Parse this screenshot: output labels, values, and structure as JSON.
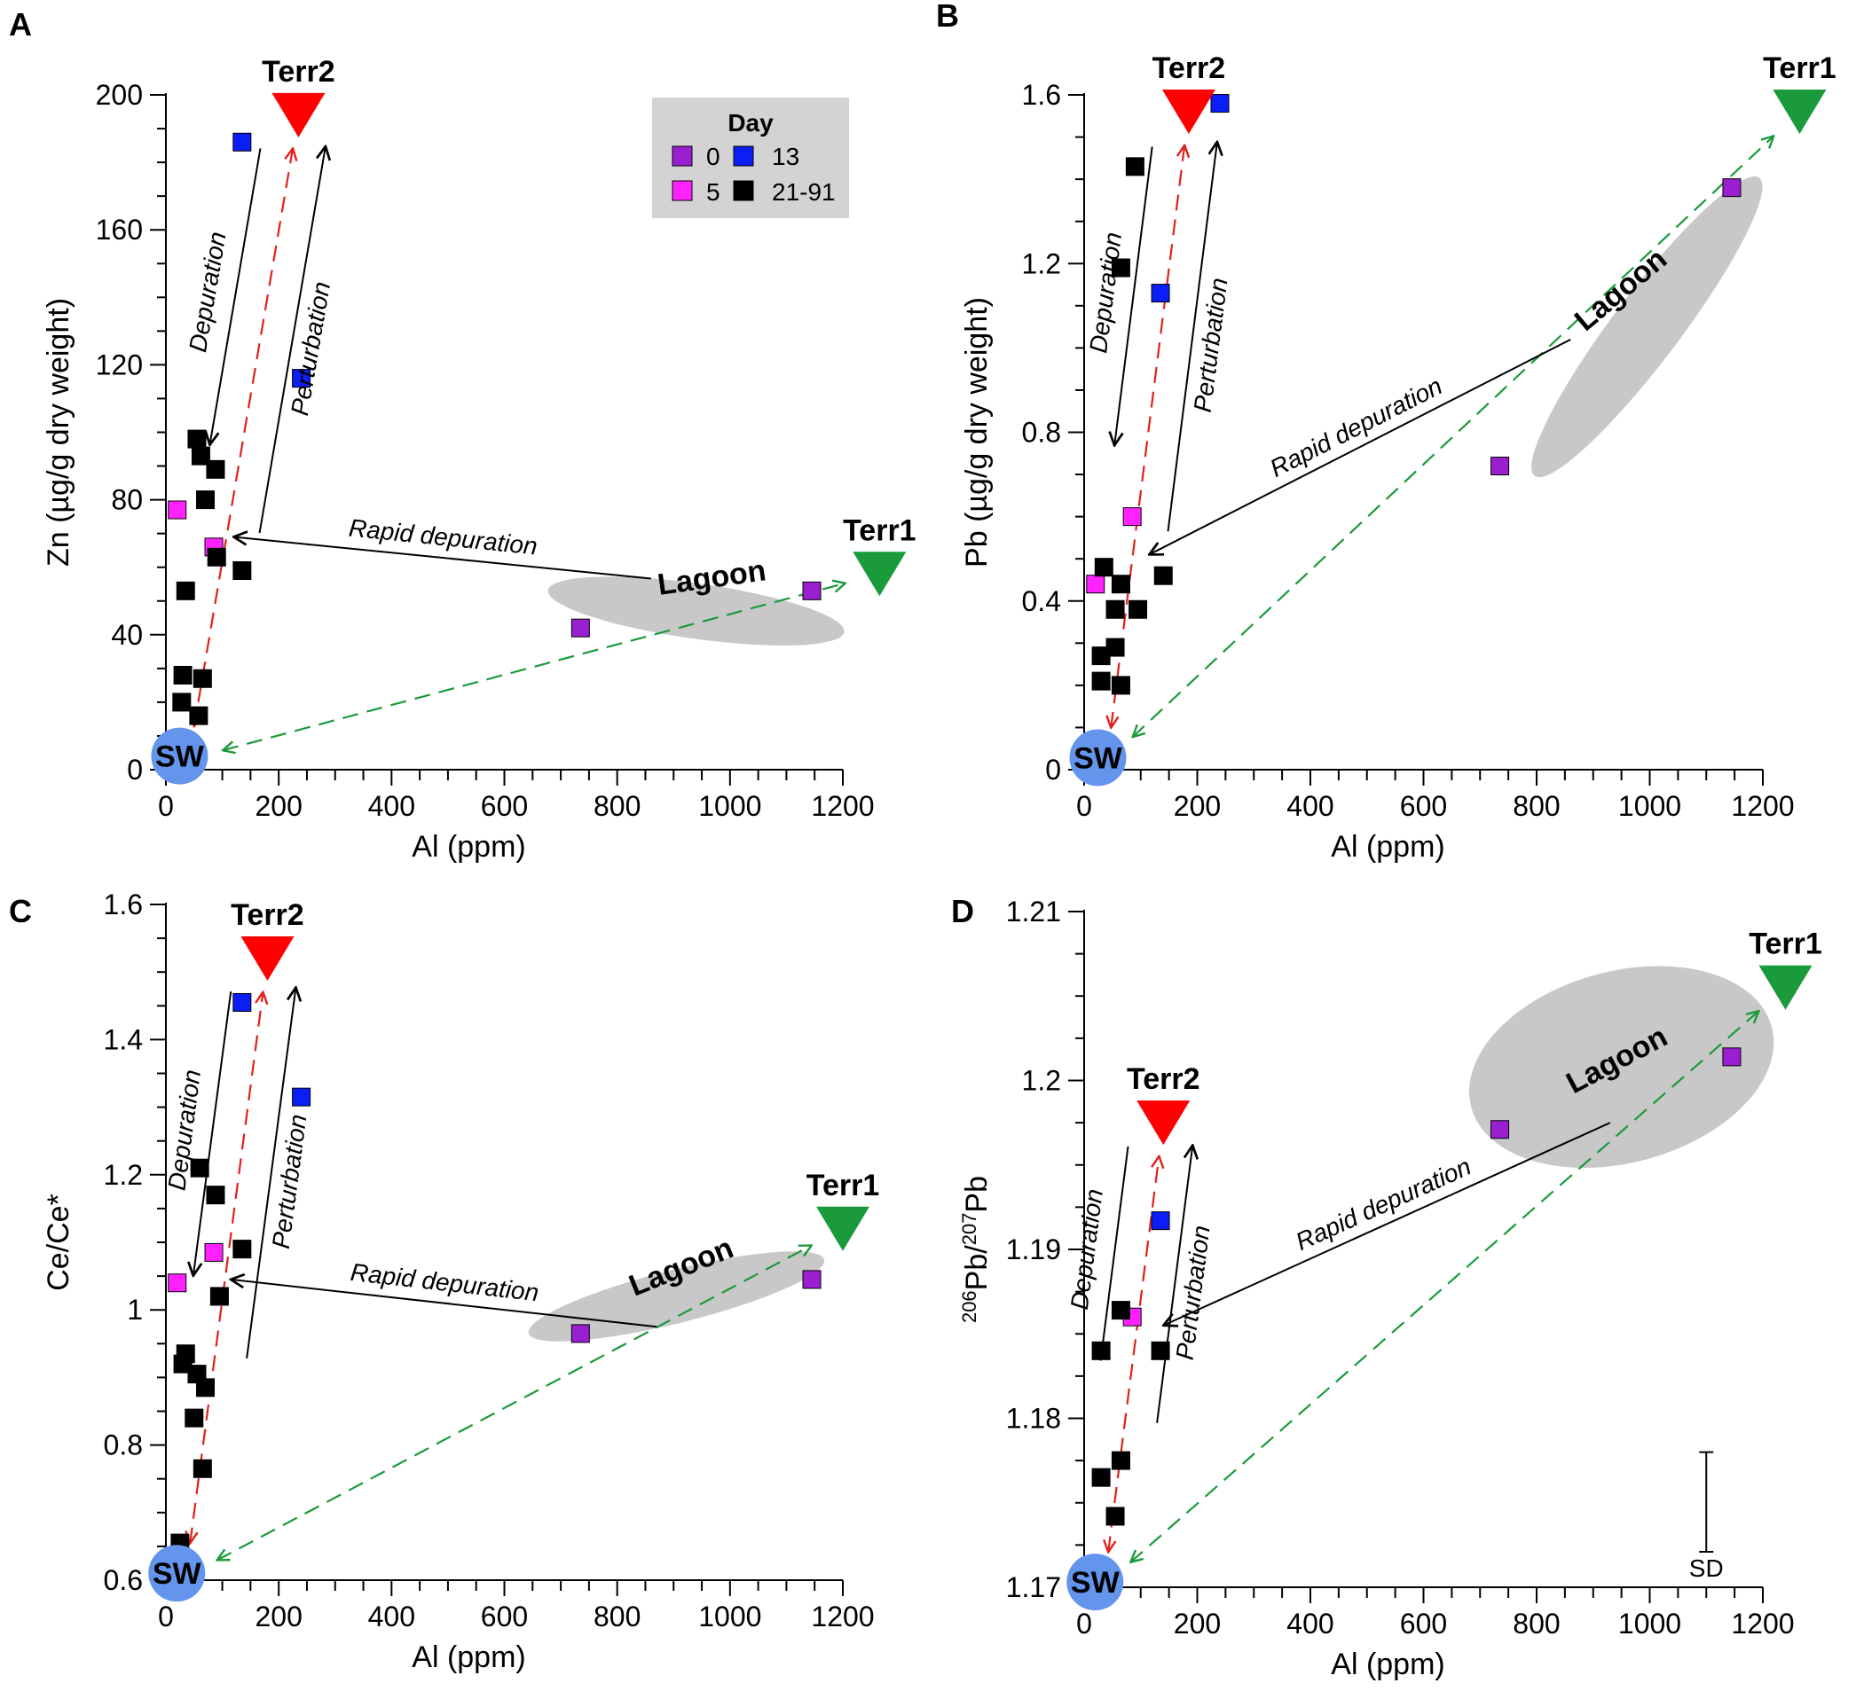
{
  "figure": {
    "legend": {
      "title": "Day",
      "items": [
        {
          "label": "0",
          "color": "#9a1fd0"
        },
        {
          "label": "13",
          "color": "#0a1ef5"
        },
        {
          "label": "5",
          "color": "#ff22ff"
        },
        {
          "label": "21-91",
          "color": "#000000"
        }
      ]
    },
    "colors": {
      "terr2": "#ff0000",
      "terr1": "#1a9a3a",
      "sw": "#6495ed",
      "lagoon": "#c8c8c8",
      "red_dash": "#e0201c",
      "green_dash": "#1a9a3a"
    }
  },
  "chart_data": [
    {
      "type": "scatter",
      "panel": "A",
      "xlabel": "Al (ppm)",
      "ylabel": "Zn (µg/g dry weight)",
      "ylabel_html": "",
      "xlim": [
        0,
        1200
      ],
      "ylim": [
        0,
        200
      ],
      "xticks": [
        "0",
        "200",
        "400",
        "600",
        "800",
        "1000",
        "1200"
      ],
      "yticks": [
        "0",
        "40",
        "80",
        "120",
        "160",
        "200"
      ],
      "endmembers": {
        "terr2": {
          "label": "Terr2",
          "x": 235,
          "y": 194
        },
        "terr1": {
          "label": "Terr1",
          "x": 1265,
          "y": 58
        },
        "sw": {
          "label": "SW",
          "x": 40,
          "y": 3
        }
      },
      "lagoon": {
        "label": "Lagoon",
        "cx": 940,
        "cy": 47,
        "rx": 265,
        "ry": 8,
        "angle": 8,
        "label_x": 970,
        "label_y": 54
      },
      "annotations": {
        "depuration": "Depuration",
        "perturbation": "Perturbation",
        "rapid": "Rapid depuration"
      },
      "series": [
        {
          "name": "0",
          "points": [
            [
              735,
              42
            ],
            [
              1145,
              53
            ]
          ]
        },
        {
          "name": "5",
          "points": [
            [
              20,
              77
            ],
            [
              85,
              66
            ]
          ]
        },
        {
          "name": "13",
          "points": [
            [
              135,
              186
            ],
            [
              240,
              116
            ]
          ]
        },
        {
          "name": "21-91",
          "points": [
            [
              55,
              98
            ],
            [
              62,
              93
            ],
            [
              88,
              89
            ],
            [
              70,
              80
            ],
            [
              90,
              63
            ],
            [
              135,
              59
            ],
            [
              35,
              53
            ],
            [
              30,
              28
            ],
            [
              65,
              27
            ],
            [
              28,
              20
            ],
            [
              58,
              16
            ]
          ]
        }
      ]
    },
    {
      "type": "scatter",
      "panel": "B",
      "xlabel": "Al (ppm)",
      "ylabel": "Pb (µg/g dry weight)",
      "ylabel_html": "",
      "xlim": [
        0,
        1200
      ],
      "ylim": [
        0,
        1.6
      ],
      "xticks": [
        "0",
        "200",
        "400",
        "600",
        "800",
        "1000",
        "1200"
      ],
      "yticks": [
        "0",
        "0.4",
        "0.8",
        "1.2",
        "1.6"
      ],
      "endmembers": {
        "terr2": {
          "label": "Terr2",
          "x": 185,
          "y": 1.56
        },
        "terr1": {
          "label": "Terr1",
          "x": 1265,
          "y": 1.56
        },
        "sw": {
          "label": "SW",
          "x": 40,
          "y": 0.02
        }
      },
      "lagoon": {
        "label": "Lagoon",
        "cx": 995,
        "cy": 1.05,
        "rx": 330,
        "ry": 38,
        "angle": -53,
        "label_x": 960,
        "label_y": 1.12
      },
      "annotations": {
        "depuration": "Depuration",
        "perturbation": "Perturbation",
        "rapid": "Rapid depuration"
      },
      "series": [
        {
          "name": "0",
          "points": [
            [
              735,
              0.72
            ],
            [
              1145,
              1.38
            ]
          ]
        },
        {
          "name": "5",
          "points": [
            [
              20,
              0.44
            ],
            [
              85,
              0.6
            ]
          ]
        },
        {
          "name": "13",
          "points": [
            [
              135,
              1.13
            ],
            [
              240,
              1.58
            ]
          ]
        },
        {
          "name": "21-91",
          "points": [
            [
              90,
              1.43
            ],
            [
              65,
              1.19
            ],
            [
              35,
              0.48
            ],
            [
              65,
              0.44
            ],
            [
              140,
              0.46
            ],
            [
              55,
              0.38
            ],
            [
              95,
              0.38
            ],
            [
              55,
              0.29
            ],
            [
              30,
              0.27
            ],
            [
              30,
              0.21
            ],
            [
              65,
              0.2
            ]
          ]
        }
      ]
    },
    {
      "type": "scatter",
      "panel": "C",
      "xlabel": "Al (ppm)",
      "ylabel": "Ce/Ce*",
      "ylabel_html": "",
      "xlim": [
        0,
        1200
      ],
      "ylim": [
        0.6,
        1.6
      ],
      "xticks": [
        "0",
        "200",
        "400",
        "600",
        "800",
        "1000",
        "1200"
      ],
      "yticks": [
        "0.6",
        "0.8",
        "1",
        "1.2",
        "1.4",
        "1.6"
      ],
      "endmembers": {
        "terr2": {
          "label": "Terr2",
          "x": 180,
          "y": 1.52
        },
        "terr1": {
          "label": "Terr1",
          "x": 1200,
          "y": 1.12
        },
        "sw": {
          "label": "SW",
          "x": 35,
          "y": 0.605
        }
      },
      "lagoon": {
        "label": "Lagoon",
        "cx": 905,
        "cy": 1.02,
        "rx": 270,
        "ry": 15,
        "angle": -14,
        "label_x": 920,
        "label_y": 1.05
      },
      "annotations": {
        "depuration": "Depuration",
        "perturbation": "Perturbation",
        "rapid": "Rapid depuration"
      },
      "series": [
        {
          "name": "0",
          "points": [
            [
              735,
              0.965
            ],
            [
              1145,
              1.045
            ]
          ]
        },
        {
          "name": "5",
          "points": [
            [
              20,
              1.04
            ],
            [
              85,
              1.085
            ]
          ]
        },
        {
          "name": "13",
          "points": [
            [
              135,
              1.455
            ],
            [
              240,
              1.315
            ]
          ]
        },
        {
          "name": "21-91",
          "points": [
            [
              60,
              1.21
            ],
            [
              88,
              1.17
            ],
            [
              135,
              1.09
            ],
            [
              95,
              1.02
            ],
            [
              35,
              0.935
            ],
            [
              30,
              0.92
            ],
            [
              55,
              0.905
            ],
            [
              70,
              0.885
            ],
            [
              50,
              0.84
            ],
            [
              65,
              0.765
            ],
            [
              25,
              0.655
            ]
          ]
        }
      ]
    },
    {
      "type": "scatter",
      "panel": "D",
      "xlabel": "Al (ppm)",
      "ylabel": "",
      "ylabel_html": "206Pb/207Pb",
      "ylabel_parts": {
        "sup1": "206",
        "t1": "Pb/",
        "sup2": "207",
        "t2": "Pb"
      },
      "xlim": [
        0,
        1200
      ],
      "ylim": [
        1.17,
        1.21
      ],
      "xticks": [
        "0",
        "200",
        "400",
        "600",
        "800",
        "1000",
        "1200"
      ],
      "yticks": [
        "1.17",
        "1.18",
        "1.19",
        "1.2",
        "1.21"
      ],
      "endmembers": {
        "terr2": {
          "label": "Terr2",
          "x": 140,
          "y": 1.1975
        },
        "terr1": {
          "label": "Terr1",
          "x": 1240,
          "y": 1.2055
        },
        "sw": {
          "label": "SW",
          "x": 35,
          "y": 1.1701
        }
      },
      "lagoon": {
        "label": "Lagoon",
        "cx": 950,
        "cy": 1.2008,
        "rx": 275,
        "ry": 127,
        "angle": -15,
        "label_x": 950,
        "label_y": 1.2007
      },
      "annotations": {
        "depuration": "Depuration",
        "perturbation": "Perturbation",
        "rapid": "Rapid depuration",
        "sd": "SD"
      },
      "sd": {
        "x": 1100,
        "y_low": 1.1721,
        "y_high": 1.178
      },
      "series": [
        {
          "name": "0",
          "points": [
            [
              735,
              1.1971
            ],
            [
              1145,
              1.2014
            ]
          ]
        },
        {
          "name": "5",
          "points": [
            [
              85,
              1.186
            ]
          ]
        },
        {
          "name": "13",
          "points": [
            [
              135,
              1.1917
            ]
          ]
        },
        {
          "name": "21-91",
          "points": [
            [
              65,
              1.1864
            ],
            [
              30,
              1.184
            ],
            [
              135,
              1.184
            ],
            [
              65,
              1.1775
            ],
            [
              30,
              1.1765
            ],
            [
              55,
              1.1742
            ]
          ]
        }
      ]
    }
  ]
}
